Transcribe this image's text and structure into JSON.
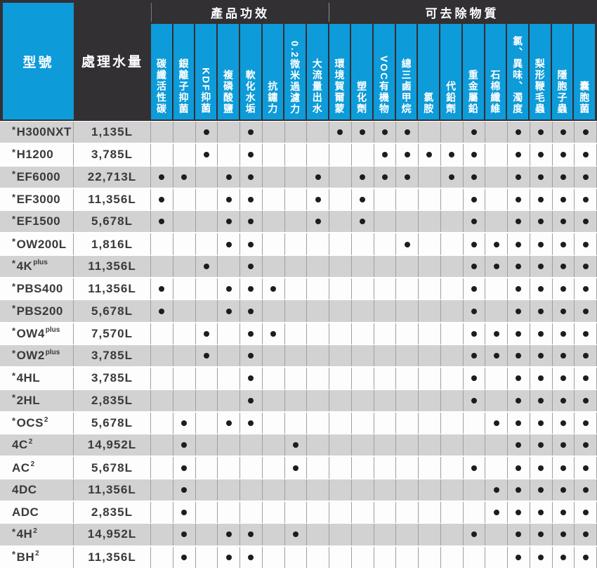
{
  "colors": {
    "accent_blue": "#0d9bd9",
    "header_dark": "#333033",
    "row_gray": "#d2d2d2",
    "row_white": "#fdfdfd",
    "grid_line": "#9f9f9f",
    "dot_black": "#1d1d1d",
    "header_text": "#ffffff",
    "body_text": "#3a3a3a"
  },
  "chart_data": {
    "type": "table",
    "model_header": "型號",
    "volume_header": "處理水量",
    "groups": [
      {
        "label": "產品功效",
        "cols": 8
      },
      {
        "label": "可去除物質",
        "cols": 12
      }
    ],
    "columns": [
      "碳纖活性碳",
      "銀離子抑菌",
      "KDF抑菌",
      "複磷酸鹽",
      "軟化水垢",
      "抗鏽力",
      "0.2微米過濾力",
      "大流量出水",
      "環境賀爾蒙",
      "塑化劑",
      "VOC有機物",
      "總三鹵甲烷",
      "氯胺",
      "代鉛劑",
      "重金屬鉛",
      "石棉纖維",
      "氯、異味、濁度",
      "梨形鞭毛蟲",
      "隱胞子蟲",
      "囊胞菌"
    ],
    "dot_symbol": "●",
    "rows": [
      {
        "prefix": "*",
        "name": "H300NXT",
        "sup": "",
        "volume": "1,135L",
        "dots": [
          3,
          5,
          9,
          10,
          11,
          12,
          15,
          17,
          18,
          19,
          20
        ]
      },
      {
        "prefix": "*",
        "name": "H1200",
        "sup": "",
        "volume": "3,785L",
        "dots": [
          3,
          5,
          11,
          12,
          13,
          14,
          15,
          17,
          18,
          19,
          20
        ]
      },
      {
        "prefix": "*",
        "name": "EF6000",
        "sup": "",
        "volume": "22,713L",
        "dots": [
          1,
          2,
          4,
          5,
          8,
          10,
          11,
          12,
          14,
          15,
          17,
          18,
          19,
          20
        ]
      },
      {
        "prefix": "*",
        "name": "EF3000",
        "sup": "",
        "volume": "11,356L",
        "dots": [
          1,
          4,
          5,
          8,
          10,
          15,
          17,
          18,
          19,
          20
        ]
      },
      {
        "prefix": "*",
        "name": "EF1500",
        "sup": "",
        "volume": "5,678L",
        "dots": [
          1,
          4,
          5,
          8,
          10,
          15,
          17,
          18,
          19,
          20
        ]
      },
      {
        "prefix": "*",
        "name": "OW200L",
        "sup": "",
        "volume": "1,816L",
        "dots": [
          4,
          5,
          12,
          15,
          16,
          17,
          18,
          19,
          20
        ]
      },
      {
        "prefix": "*",
        "name": "4K",
        "sup": "plus",
        "volume": "11,356L",
        "dots": [
          3,
          5,
          15,
          16,
          17,
          18,
          19,
          20
        ]
      },
      {
        "prefix": "*",
        "name": "PBS400",
        "sup": "",
        "volume": "11,356L",
        "dots": [
          1,
          4,
          5,
          6,
          15,
          17,
          18,
          19,
          20
        ]
      },
      {
        "prefix": "*",
        "name": "PBS200",
        "sup": "",
        "volume": "5,678L",
        "dots": [
          1,
          4,
          5,
          15,
          17,
          18,
          19,
          20
        ]
      },
      {
        "prefix": "*",
        "name": "OW4",
        "sup": "plus",
        "volume": "7,570L",
        "dots": [
          3,
          5,
          6,
          15,
          16,
          17,
          18,
          19,
          20
        ]
      },
      {
        "prefix": "*",
        "name": "OW2",
        "sup": "plus",
        "volume": "3,785L",
        "dots": [
          3,
          5,
          15,
          16,
          17,
          18,
          19,
          20
        ]
      },
      {
        "prefix": "*",
        "name": "4HL",
        "sup": "",
        "volume": "3,785L",
        "dots": [
          5,
          15,
          17,
          18,
          19,
          20
        ]
      },
      {
        "prefix": "*",
        "name": "2HL",
        "sup": "",
        "volume": "2,835L",
        "dots": [
          5,
          15,
          17,
          18,
          19,
          20
        ]
      },
      {
        "prefix": "*",
        "name": "OCS",
        "sup": "2",
        "volume": "5,678L",
        "dots": [
          2,
          4,
          5,
          16,
          17,
          18,
          19,
          20
        ]
      },
      {
        "prefix": "",
        "name": "4C",
        "sup": "2",
        "volume": "14,952L",
        "dots": [
          2,
          7,
          17,
          18,
          19,
          20
        ]
      },
      {
        "prefix": "",
        "name": "AC",
        "sup": "2",
        "volume": "5,678L",
        "dots": [
          2,
          7,
          15,
          17,
          18,
          19,
          20
        ]
      },
      {
        "prefix": "",
        "name": "4DC",
        "sup": "",
        "volume": "11,356L",
        "dots": [
          2,
          16,
          17,
          18,
          19,
          20
        ]
      },
      {
        "prefix": "",
        "name": "ADC",
        "sup": "",
        "volume": "2,835L",
        "dots": [
          2,
          16,
          17,
          18,
          19,
          20
        ]
      },
      {
        "prefix": "*",
        "name": "4H",
        "sup": "2",
        "volume": "14,952L",
        "dots": [
          2,
          4,
          5,
          7,
          15,
          17,
          18,
          19,
          20
        ]
      },
      {
        "prefix": "*",
        "name": "BH",
        "sup": "2",
        "volume": "11,356L",
        "dots": [
          2,
          4,
          5,
          17,
          18,
          19,
          20
        ]
      }
    ]
  }
}
